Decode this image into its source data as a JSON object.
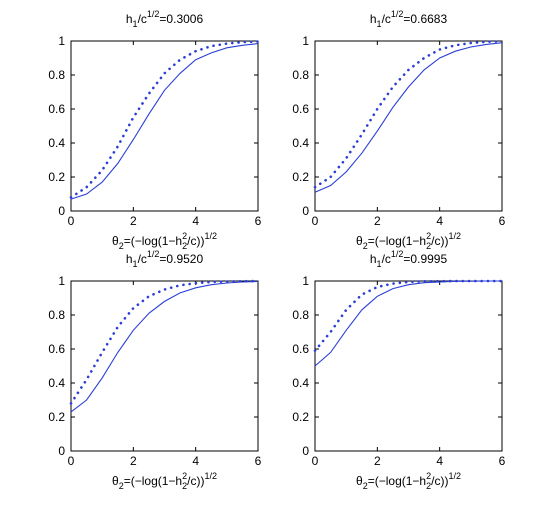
{
  "chart_data": [
    {
      "type": "line",
      "title": {
        "base": "h",
        "sub": "1",
        "mid": "/c",
        "sup": "1/2",
        "tail": "=0.3006"
      },
      "xlabel": {
        "p1": "θ",
        "s1": "2",
        "p2": "=(−log(1−h",
        "sup2": "2",
        "sub2": "2",
        "p3": "/c))",
        "sup3": "1/2"
      },
      "xlim": [
        0,
        6
      ],
      "ylim": [
        0,
        1
      ],
      "xticks": [
        0,
        2,
        4,
        6
      ],
      "yticks": [
        0,
        0.2,
        0.4,
        0.6,
        0.8,
        1
      ],
      "ytick_labels": [
        "0",
        "0.2",
        "0.4",
        "0.6",
        "0.8",
        "1"
      ],
      "grid": false,
      "series": [
        {
          "style": "solid",
          "x": [
            0,
            0.5,
            1,
            1.5,
            2,
            2.5,
            3,
            3.5,
            4,
            4.5,
            5,
            5.5,
            6
          ],
          "values": [
            0.07,
            0.1,
            0.17,
            0.28,
            0.42,
            0.57,
            0.71,
            0.81,
            0.89,
            0.93,
            0.96,
            0.975,
            0.985
          ]
        },
        {
          "style": "dotted",
          "x": [
            0,
            0.5,
            1,
            1.5,
            2,
            2.5,
            3,
            3.5,
            4,
            4.5,
            5,
            5.5,
            6
          ],
          "values": [
            0.08,
            0.14,
            0.24,
            0.38,
            0.55,
            0.69,
            0.81,
            0.89,
            0.94,
            0.97,
            0.985,
            0.993,
            0.997
          ]
        }
      ]
    },
    {
      "type": "line",
      "title": {
        "base": "h",
        "sub": "1",
        "mid": "/c",
        "sup": "1/2",
        "tail": "=0.6683"
      },
      "xlabel": {
        "p1": "θ",
        "s1": "2",
        "p2": "=(−log(1−h",
        "sup2": "2",
        "sub2": "2",
        "p3": "/c))",
        "sup3": "1/2"
      },
      "xlim": [
        0,
        6
      ],
      "ylim": [
        0,
        1
      ],
      "xticks": [
        0,
        2,
        4,
        6
      ],
      "yticks": [
        0,
        0.2,
        0.4,
        0.6,
        0.8,
        1
      ],
      "ytick_labels": [
        "0",
        "0.2",
        "0.4",
        "0.6",
        "0.8",
        "1"
      ],
      "grid": false,
      "series": [
        {
          "style": "solid",
          "x": [
            0,
            0.5,
            1,
            1.5,
            2,
            2.5,
            3,
            3.5,
            4,
            4.5,
            5,
            5.5,
            6
          ],
          "values": [
            0.11,
            0.15,
            0.23,
            0.34,
            0.47,
            0.61,
            0.73,
            0.83,
            0.9,
            0.94,
            0.965,
            0.98,
            0.99
          ]
        },
        {
          "style": "dotted",
          "x": [
            0,
            0.5,
            1,
            1.5,
            2,
            2.5,
            3,
            3.5,
            4,
            4.5,
            5,
            5.5,
            6
          ],
          "values": [
            0.14,
            0.2,
            0.31,
            0.45,
            0.6,
            0.73,
            0.83,
            0.9,
            0.95,
            0.975,
            0.988,
            0.995,
            0.998
          ]
        }
      ]
    },
    {
      "type": "line",
      "title": {
        "base": "h",
        "sub": "1",
        "mid": "/c",
        "sup": "1/2",
        "tail": "=0.9520"
      },
      "xlabel": {
        "p1": "θ",
        "s1": "2",
        "p2": "=(−log(1−h",
        "sup2": "2",
        "sub2": "2",
        "p3": "/c))",
        "sup3": "1/2"
      },
      "xlim": [
        0,
        6
      ],
      "ylim": [
        0,
        1
      ],
      "xticks": [
        0,
        2,
        4,
        6
      ],
      "yticks": [
        0,
        0.2,
        0.4,
        0.6,
        0.8,
        1
      ],
      "ytick_labels": [
        "0",
        "0.2",
        "0.4",
        "0.6",
        "0.8",
        "1"
      ],
      "grid": false,
      "series": [
        {
          "style": "solid",
          "x": [
            0,
            0.5,
            1,
            1.5,
            2,
            2.5,
            3,
            3.5,
            4,
            4.5,
            5,
            5.5,
            6
          ],
          "values": [
            0.23,
            0.3,
            0.43,
            0.58,
            0.71,
            0.81,
            0.88,
            0.93,
            0.96,
            0.978,
            0.988,
            0.994,
            0.997
          ]
        },
        {
          "style": "dotted",
          "x": [
            0,
            0.5,
            1,
            1.5,
            2,
            2.5,
            3,
            3.5,
            4,
            4.5,
            5,
            5.5,
            6
          ],
          "values": [
            0.28,
            0.42,
            0.58,
            0.73,
            0.84,
            0.91,
            0.95,
            0.975,
            0.987,
            0.994,
            0.997,
            0.999,
            1.0
          ]
        }
      ]
    },
    {
      "type": "line",
      "title": {
        "base": "h",
        "sub": "1",
        "mid": "/c",
        "sup": "1/2",
        "tail": "=0.9995"
      },
      "xlabel": {
        "p1": "θ",
        "s1": "2",
        "p2": "=(−log(1−h",
        "sup2": "2",
        "sub2": "2",
        "p3": "/c))",
        "sup3": "1/2"
      },
      "xlim": [
        0,
        6
      ],
      "ylim": [
        0,
        1
      ],
      "xticks": [
        0,
        2,
        4,
        6
      ],
      "yticks": [
        0,
        0.2,
        0.4,
        0.6,
        0.8,
        1
      ],
      "ytick_labels": [
        "0",
        "0.2",
        "0.4",
        "0.6",
        "0.8",
        "1"
      ],
      "grid": false,
      "series": [
        {
          "style": "solid",
          "x": [
            0,
            0.5,
            1,
            1.5,
            2,
            2.5,
            3,
            3.5,
            4,
            4.5,
            5,
            5.5,
            6
          ],
          "values": [
            0.5,
            0.58,
            0.71,
            0.83,
            0.91,
            0.955,
            0.978,
            0.99,
            0.995,
            0.998,
            0.999,
            1.0,
            1.0
          ]
        },
        {
          "style": "dotted",
          "x": [
            0,
            0.5,
            1,
            1.5,
            2,
            2.5,
            3,
            3.5,
            4,
            4.5,
            5,
            5.5,
            6
          ],
          "values": [
            0.59,
            0.7,
            0.83,
            0.92,
            0.965,
            0.985,
            0.994,
            0.998,
            0.999,
            1.0,
            1.0,
            1.0,
            1.0
          ]
        }
      ]
    }
  ],
  "colors": {
    "line": "#2b3fd6",
    "axis": "#000000"
  }
}
